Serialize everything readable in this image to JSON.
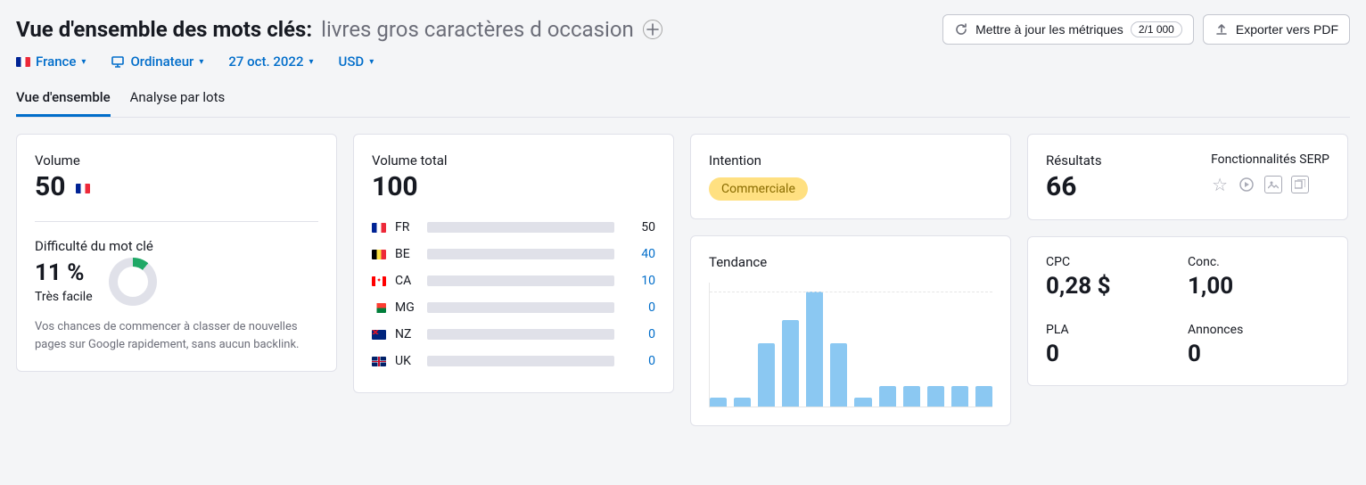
{
  "header": {
    "title_prefix": "Vue d'ensemble des mots clés:",
    "keyword": "livres gros caractères d occasion",
    "update_label": "Mettre à jour les métriques",
    "update_count": "2/1 000",
    "export_label": "Exporter vers PDF"
  },
  "filters": {
    "country": "France",
    "device": "Ordinateur",
    "date": "27 oct. 2022",
    "currency": "USD"
  },
  "tabs": {
    "overview": "Vue d'ensemble",
    "bulk": "Analyse par lots"
  },
  "volume": {
    "label": "Volume",
    "value": "50",
    "kd_label": "Difficulté du mot clé",
    "kd_pct": "11 %",
    "kd_text": "Très facile",
    "kd_desc": "Vos chances de commencer à classer de nouvelles pages sur Google rapidement, sans aucun backlink.",
    "donut": {
      "pct": 11,
      "fg": "#1fa866",
      "bg": "#e0e1e9"
    }
  },
  "total": {
    "label": "Volume total",
    "value": "100",
    "max": 50,
    "rows": [
      {
        "cc": "FR",
        "flag": "fr",
        "val": 50,
        "color": "#006dca",
        "link": false
      },
      {
        "cc": "BE",
        "flag": "be",
        "val": 40,
        "color": "#2bb3ff",
        "link": true
      },
      {
        "cc": "CA",
        "flag": "ca",
        "val": 10,
        "color": "#2bb3ff",
        "link": true
      },
      {
        "cc": "MG",
        "flag": "mg",
        "val": 0,
        "color": "#2bb3ff",
        "link": true
      },
      {
        "cc": "NZ",
        "flag": "nz",
        "val": 0,
        "color": "#2bb3ff",
        "link": true
      },
      {
        "cc": "UK",
        "flag": "uk",
        "val": 0,
        "color": "#2bb3ff",
        "link": true
      }
    ]
  },
  "intent": {
    "label": "Intention",
    "badge": "Commerciale",
    "badge_bg": "#ffe081",
    "badge_fg": "#8a6c00"
  },
  "trend": {
    "label": "Tendance",
    "bar_color": "#8bc8f2",
    "values": [
      8,
      8,
      55,
      75,
      100,
      55,
      8,
      18,
      18,
      18,
      18,
      18
    ]
  },
  "results": {
    "label": "Résultats",
    "value": "66",
    "serp_label": "Fonctionnalités SERP"
  },
  "cpc": {
    "cpc_label": "CPC",
    "cpc_value": "0,28 $",
    "conc_label": "Conc.",
    "conc_value": "1,00",
    "pla_label": "PLA",
    "pla_value": "0",
    "ads_label": "Annonces",
    "ads_value": "0"
  }
}
